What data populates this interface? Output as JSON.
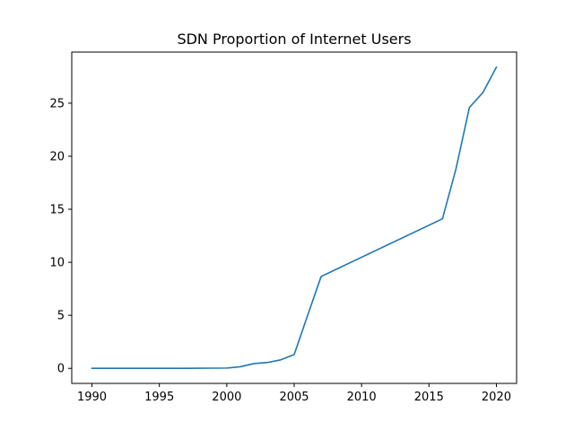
{
  "chart_data": {
    "type": "line",
    "title": "SDN Proportion of Internet Users",
    "xlabel": "",
    "ylabel": "",
    "xlim": [
      1988.5,
      2021.5
    ],
    "ylim": [
      -1.42,
      29.82
    ],
    "xticks": [
      1990,
      1995,
      2000,
      2005,
      2010,
      2015,
      2020
    ],
    "yticks": [
      0,
      5,
      10,
      15,
      20,
      25
    ],
    "grid": false,
    "series": [
      {
        "color": "#1f77b4",
        "x": [
          1990,
          1991,
          1992,
          1993,
          1994,
          1995,
          1996,
          1997,
          1998,
          1999,
          2000,
          2001,
          2002,
          2003,
          2004,
          2005,
          2006,
          2007,
          2016,
          2017,
          2018,
          2019,
          2020
        ],
        "y": [
          0,
          0,
          0,
          0,
          0,
          0,
          0,
          0.004,
          0.01,
          0.02,
          0.03,
          0.15,
          0.45,
          0.55,
          0.8,
          1.3,
          5.0,
          8.66,
          14.1,
          18.8,
          24.6,
          26.0,
          28.4
        ]
      }
    ]
  }
}
